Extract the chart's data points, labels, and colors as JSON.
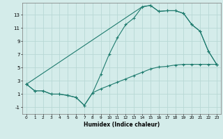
{
  "xlabel": "Humidex (Indice chaleur)",
  "bg_color": "#d4ecea",
  "grid_color": "#b8d8d5",
  "line_color": "#1e7b6e",
  "xlim": [
    -0.5,
    23.5
  ],
  "ylim": [
    -2.0,
    14.8
  ],
  "xticks": [
    0,
    1,
    2,
    3,
    4,
    5,
    6,
    7,
    8,
    9,
    10,
    11,
    12,
    13,
    14,
    15,
    16,
    17,
    18,
    19,
    20,
    21,
    22,
    23
  ],
  "yticks": [
    -1,
    1,
    3,
    5,
    7,
    9,
    11,
    13
  ],
  "curve1_x": [
    0,
    1,
    2,
    3,
    4,
    5,
    6,
    7,
    8,
    9,
    10,
    11,
    12,
    13,
    14,
    15,
    16,
    17,
    18,
    19,
    20,
    21,
    22,
    23
  ],
  "curve1_y": [
    2.5,
    1.5,
    1.5,
    1.0,
    1.0,
    0.8,
    0.5,
    -0.7,
    1.2,
    4.0,
    7.0,
    9.5,
    11.5,
    12.5,
    14.2,
    14.4,
    13.5,
    13.6,
    13.6,
    13.2,
    11.5,
    10.5,
    7.5,
    5.5
  ],
  "curve2_x": [
    0,
    1,
    2,
    3,
    4,
    5,
    6,
    7,
    8,
    9,
    10,
    11,
    12,
    13,
    14,
    15,
    16,
    17,
    18,
    19,
    20,
    21,
    22,
    23
  ],
  "curve2_y": [
    2.5,
    1.5,
    1.5,
    1.0,
    1.0,
    0.8,
    0.5,
    -0.7,
    1.2,
    1.8,
    2.3,
    2.8,
    3.3,
    3.8,
    4.3,
    4.8,
    5.1,
    5.2,
    5.4,
    5.5,
    5.5,
    5.5,
    5.5,
    5.5
  ],
  "curve3_x": [
    0,
    14,
    15,
    16,
    17,
    18,
    19,
    20,
    21,
    22,
    23
  ],
  "curve3_y": [
    2.5,
    14.2,
    14.4,
    13.5,
    13.6,
    13.6,
    13.2,
    11.5,
    10.5,
    7.5,
    5.5
  ]
}
